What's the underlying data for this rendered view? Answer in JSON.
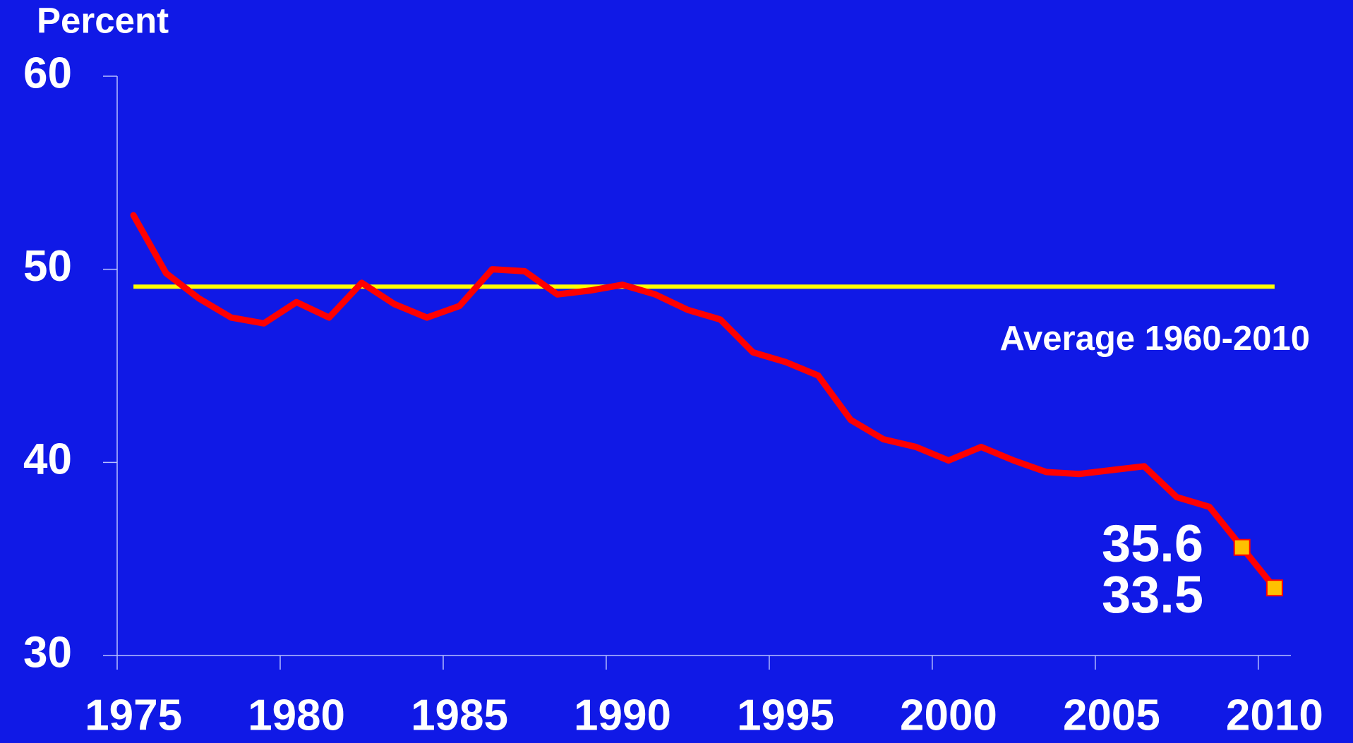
{
  "chart_data": {
    "type": "line",
    "y_label": "Percent",
    "categories": [
      "1975",
      null,
      null,
      null,
      null,
      "1980",
      null,
      null,
      null,
      null,
      "1985",
      null,
      null,
      null,
      null,
      "1990",
      null,
      null,
      null,
      null,
      "1995",
      null,
      null,
      null,
      null,
      "2000",
      null,
      null,
      null,
      null,
      "2005",
      null,
      null,
      null,
      null,
      "2010"
    ],
    "series": [
      {
        "color": "#ff0000",
        "values": [
          52.8,
          49.8,
          48.5,
          47.5,
          47.2,
          48.3,
          47.5,
          49.3,
          48.2,
          47.5,
          48.1,
          50.0,
          49.9,
          48.7,
          48.9,
          49.2,
          48.7,
          47.9,
          47.4,
          45.7,
          45.2,
          44.5,
          42.2,
          41.2,
          40.8,
          40.1,
          40.8,
          40.1,
          39.5,
          39.4,
          39.6,
          39.8,
          38.2,
          37.7,
          35.6,
          33.5
        ]
      },
      {
        "color": "#ffc000",
        "marker": "square",
        "data_labels": true,
        "values": [
          null,
          null,
          null,
          null,
          null,
          null,
          null,
          null,
          null,
          null,
          null,
          null,
          null,
          null,
          null,
          null,
          null,
          null,
          null,
          null,
          null,
          null,
          null,
          null,
          null,
          null,
          null,
          null,
          null,
          null,
          null,
          null,
          null,
          null,
          35.6,
          33.5
        ]
      }
    ],
    "reference_line": {
      "label": "Average 1960-2010",
      "value": 49.1,
      "color": "#ffff00"
    },
    "ylim": [
      30,
      60
    ],
    "yticks": [
      30,
      40,
      50,
      60
    ],
    "grid": false
  }
}
